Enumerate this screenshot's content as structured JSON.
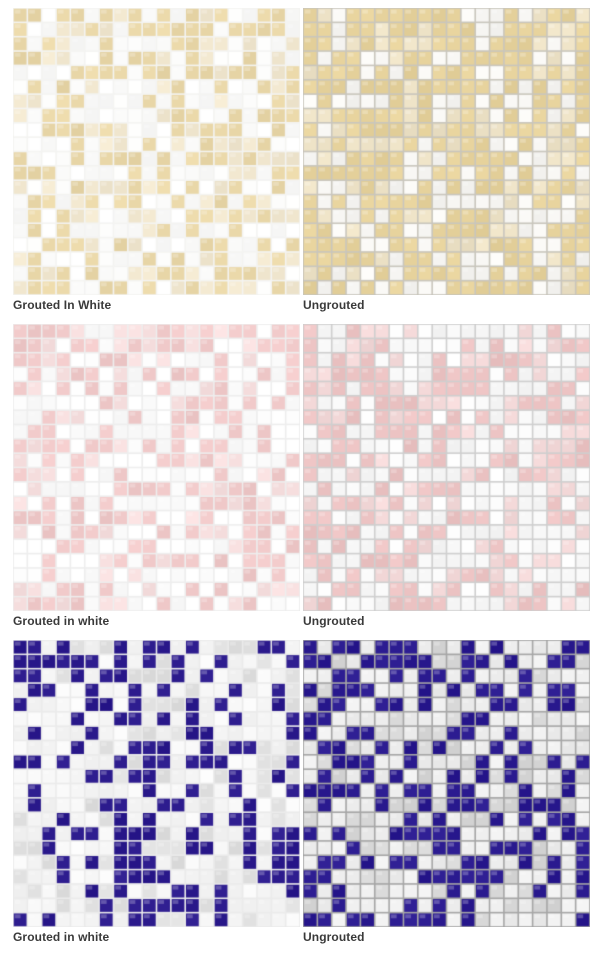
{
  "panels": [
    {
      "caption": "Grouted In White",
      "grout": "#f4f4f2",
      "base": "#fbfbfa",
      "accent": "#e9d7a8",
      "accent2": "#f1e7cf",
      "density": 0.42,
      "seed": 11
    },
    {
      "caption": "Ungrouted",
      "grout": "#c9c6bd",
      "base": "#f7f6f3",
      "accent": "#e6d29c",
      "accent2": "#ede2c6",
      "density": 0.5,
      "seed": 23
    },
    {
      "caption": "Grouted in white",
      "grout": "#eeeeee",
      "base": "#fdfdfd",
      "accent": "#f0c9c9",
      "accent2": "#f6dede",
      "density": 0.33,
      "seed": 37
    },
    {
      "caption": "Ungrouted",
      "grout": "#cfcfcf",
      "base": "#f8f8f8",
      "accent": "#ecc3c3",
      "accent2": "#f3d8d8",
      "density": 0.33,
      "seed": 41
    },
    {
      "caption": "Grouted in white",
      "grout": "#ebebeb",
      "base": "#f6f6f6",
      "accent": "#2b1a8c",
      "accent2": "#dedede",
      "density": 0.36,
      "seed": 53
    },
    {
      "caption": "Ungrouted",
      "grout": "#a6a6a6",
      "base": "#eeeeee",
      "accent": "#2a1a8f",
      "accent2": "#d7d7d7",
      "density": 0.38,
      "seed": 67
    }
  ]
}
